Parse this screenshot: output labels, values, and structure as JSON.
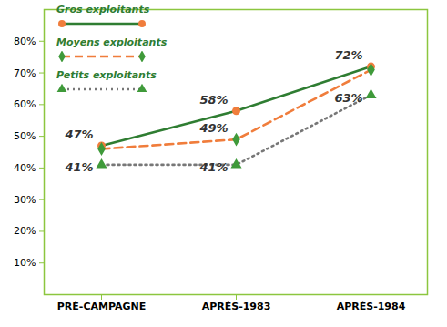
{
  "chart_data": {
    "type": "line",
    "categories": [
      "PRÉ-CAMPAGNE",
      "APRÈS-1983",
      "APRÈS-1984"
    ],
    "series": [
      {
        "name": "Gros exploitants",
        "color": "#2f7d32",
        "marker": "circle",
        "line_style": "solid",
        "values": [
          47,
          58,
          72
        ],
        "value_labels": [
          "47%",
          "58%",
          "72%"
        ]
      },
      {
        "name": "Moyens exploitants",
        "color": "#f07d3c",
        "marker": "diamond",
        "line_style": "dashed",
        "values": [
          46,
          49,
          71
        ],
        "value_labels": [
          null,
          "49%",
          null
        ]
      },
      {
        "name": "Petits exploitants",
        "color": "#777777",
        "marker": "triangle",
        "line_style": "dotted",
        "values": [
          41,
          41,
          63
        ],
        "value_labels": [
          "41%",
          "41%",
          "63%"
        ]
      }
    ],
    "ylim": [
      0,
      90
    ],
    "yticks": [
      {
        "value": 10,
        "label": "10%"
      },
      {
        "value": 20,
        "label": "20%"
      },
      {
        "value": 30,
        "label": "30%"
      },
      {
        "value": 40,
        "label": "40%"
      },
      {
        "value": 50,
        "label": "50%"
      },
      {
        "value": 60,
        "label": "60%"
      },
      {
        "value": 70,
        "label": "70%"
      },
      {
        "value": 80,
        "label": "80%"
      }
    ],
    "grid": false,
    "legend": "top-left",
    "data_labels": true
  }
}
